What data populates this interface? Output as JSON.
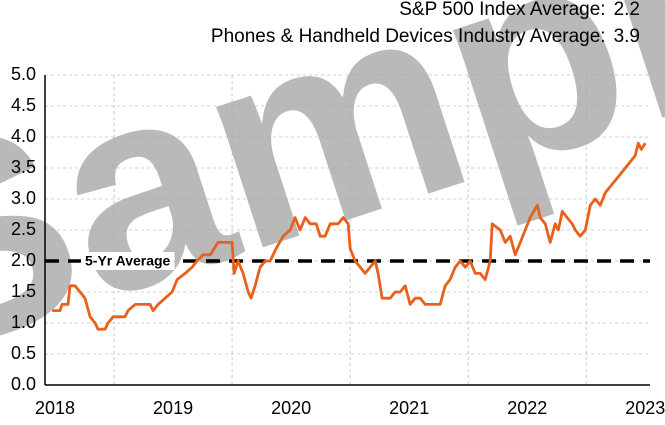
{
  "chart_data": {
    "type": "line",
    "watermark": "Sample",
    "annotations": [
      {
        "label": "S&P 500 Index Average:",
        "value": 2.2
      },
      {
        "label": "Phones & Handheld Devices Industry Average:",
        "value": 3.9
      }
    ],
    "reference": {
      "label": "5-Yr Average",
      "value": 2.0,
      "color": "#000000"
    },
    "xlim": [
      2017.915,
      2023.04
    ],
    "xticks": [
      2018,
      2019,
      2020,
      2021,
      2022,
      2023
    ],
    "xgrid": [
      2018.5,
      2019.5,
      2020.5,
      2021.5,
      2022.5
    ],
    "ylim": [
      0,
      5
    ],
    "yticks": [
      {
        "value": 0,
        "label": "0.0"
      },
      0.5,
      {
        "value": 1,
        "label": "1.0"
      },
      1.5,
      {
        "value": 2,
        "label": "2.0"
      },
      2.5,
      {
        "value": 3,
        "label": "3.0"
      },
      3.5,
      {
        "value": 4,
        "label": "4.0"
      },
      4.5,
      {
        "value": 5,
        "label": "5.0"
      }
    ],
    "grid": true,
    "series": [
      {
        "color": "#e8601c",
        "x": [
          2017.975,
          2018.042,
          2018.059,
          2018.11,
          2018.127,
          2018.169,
          2018.212,
          2018.254,
          2018.297,
          2018.339,
          2018.364,
          2018.424,
          2018.449,
          2018.492,
          2018.593,
          2018.619,
          2018.678,
          2018.805,
          2018.831,
          2018.873,
          2018.932,
          2018.992,
          2019.034,
          2019.102,
          2019.161,
          2019.203,
          2019.254,
          2019.314,
          2019.381,
          2019.5,
          2019.517,
          2019.551,
          2019.593,
          2019.636,
          2019.661,
          2019.695,
          2019.737,
          2019.78,
          2019.822,
          2019.873,
          2019.932,
          2019.992,
          2020.034,
          2020.076,
          2020.119,
          2020.161,
          2020.212,
          2020.246,
          2020.288,
          2020.331,
          2020.398,
          2020.441,
          2020.483,
          2020.5,
          2020.542,
          2020.585,
          2020.627,
          2020.669,
          2020.712,
          2020.737,
          2020.771,
          2020.839,
          2020.881,
          2020.924,
          2020.966,
          2021.008,
          2021.051,
          2021.093,
          2021.136,
          2021.263,
          2021.305,
          2021.347,
          2021.39,
          2021.432,
          2021.475,
          2021.517,
          2021.559,
          2021.602,
          2021.644,
          2021.686,
          2021.703,
          2021.771,
          2021.814,
          2021.856,
          2021.898,
          2021.941,
          2021.983,
          2022.025,
          2022.085,
          2022.11,
          2022.153,
          2022.195,
          2022.237,
          2022.263,
          2022.297,
          2022.339,
          2022.381,
          2022.407,
          2022.449,
          2022.492,
          2022.534,
          2022.576,
          2022.619,
          2022.661,
          2022.703,
          2022.746,
          2022.788,
          2022.831,
          2022.873,
          2022.915,
          2022.941,
          2022.966,
          2023.0
        ],
        "values": [
          1.2,
          1.2,
          1.3,
          1.3,
          1.6,
          1.6,
          1.5,
          1.4,
          1.1,
          1.0,
          0.9,
          0.9,
          1.0,
          1.1,
          1.1,
          1.2,
          1.3,
          1.3,
          1.2,
          1.3,
          1.4,
          1.5,
          1.7,
          1.8,
          1.9,
          2.0,
          2.1,
          2.1,
          2.3,
          2.3,
          1.8,
          2.0,
          1.8,
          1.5,
          1.4,
          1.6,
          1.9,
          2.0,
          2.0,
          2.2,
          2.4,
          2.5,
          2.7,
          2.5,
          2.7,
          2.6,
          2.6,
          2.4,
          2.4,
          2.6,
          2.6,
          2.7,
          2.6,
          2.2,
          2.0,
          1.9,
          1.8,
          1.9,
          2.0,
          1.8,
          1.4,
          1.4,
          1.5,
          1.5,
          1.6,
          1.3,
          1.4,
          1.4,
          1.3,
          1.3,
          1.6,
          1.7,
          1.9,
          2.0,
          1.9,
          2.0,
          1.8,
          1.8,
          1.7,
          2.0,
          2.6,
          2.5,
          2.3,
          2.4,
          2.1,
          2.3,
          2.5,
          2.7,
          2.9,
          2.7,
          2.6,
          2.3,
          2.6,
          2.5,
          2.8,
          2.7,
          2.6,
          2.5,
          2.4,
          2.5,
          2.9,
          3.0,
          2.9,
          3.1,
          3.2,
          3.3,
          3.4,
          3.5,
          3.6,
          3.7,
          3.9,
          3.8,
          3.9
        ]
      }
    ]
  }
}
